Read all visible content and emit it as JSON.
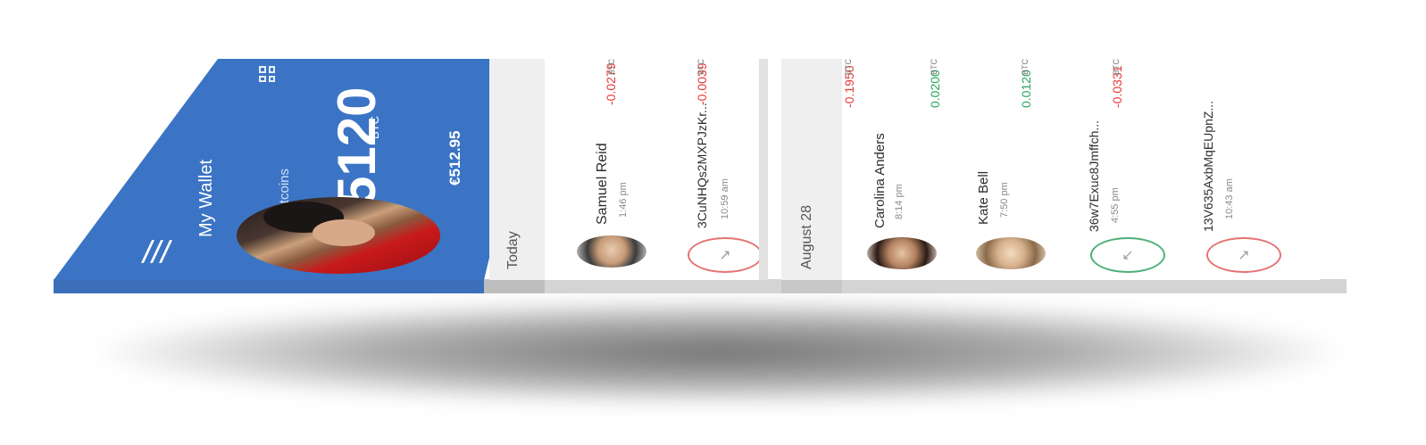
{
  "header": {
    "title": "My Wallet",
    "balance_label": "Your Bitcoins",
    "balance": "2.5120",
    "balance_unit": "BTC",
    "fiat": "€512.95",
    "colors": {
      "background": "#3b74c4"
    }
  },
  "icons": {
    "menu": "hamburger-menu-icon",
    "qr": "qr-code-icon"
  },
  "sections": [
    {
      "label": "Today",
      "transactions": [
        {
          "name": "Samuel Reid",
          "time": "1:46 pm",
          "amount": "-0.0279",
          "unit": "BTC",
          "type": "contact"
        },
        {
          "name": "3CuNHQs2MXPJzKr...",
          "time": "10:59 am",
          "amount": "-0.0039",
          "unit": "BTC",
          "type": "address-sent"
        }
      ]
    },
    {
      "label": "August 28",
      "transactions": [
        {
          "name": "Carolina Anders",
          "time": "8:14 pm",
          "amount": "-0.1950",
          "unit": "BTC",
          "type": "contact"
        },
        {
          "name": "Kate Bell",
          "time": "7:50 pm",
          "amount": "0.0200",
          "unit": "BTC",
          "type": "contact"
        },
        {
          "name": "36w7Exuc8Jmffch...",
          "time": "4:55 pm",
          "amount": "0.0120",
          "unit": "BTC",
          "type": "address-received"
        },
        {
          "name": "13V635AxbMqEUpnZ...",
          "time": "10:43 am",
          "amount": "-0.0331",
          "unit": "BTC",
          "type": "address-sent"
        }
      ]
    }
  ],
  "colors": {
    "negative": "#e53935",
    "positive": "#26a65b",
    "accent": "#3b74c4"
  }
}
